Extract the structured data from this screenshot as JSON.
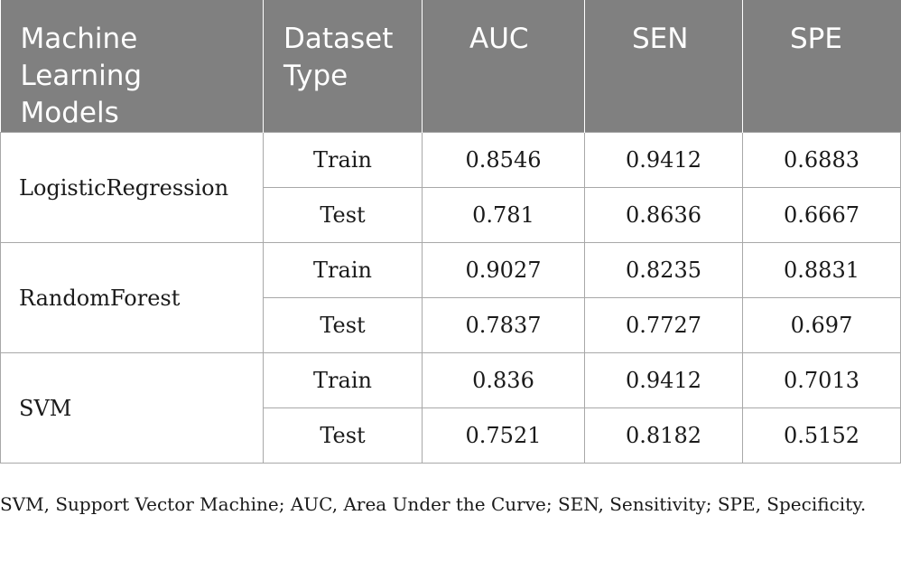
{
  "table": {
    "headers": [
      "Machine Learning Models",
      "Dataset Type",
      "AUC",
      "SEN",
      "SPE"
    ],
    "groups": [
      {
        "model": "LogisticRegression",
        "rows": [
          {
            "dataset": "Train",
            "auc": "0.8546",
            "sen": "0.9412",
            "spe": "0.6883"
          },
          {
            "dataset": "Test",
            "auc": "0.781",
            "sen": "0.8636",
            "spe": "0.6667"
          }
        ]
      },
      {
        "model": "RandomForest",
        "rows": [
          {
            "dataset": "Train",
            "auc": "0.9027",
            "sen": "0.8235",
            "spe": "0.8831"
          },
          {
            "dataset": "Test",
            "auc": "0.7837",
            "sen": "0.7727",
            "spe": "0.697"
          }
        ]
      },
      {
        "model": "SVM",
        "rows": [
          {
            "dataset": "Train",
            "auc": "0.836",
            "sen": "0.9412",
            "spe": "0.7013"
          },
          {
            "dataset": "Test",
            "auc": "0.7521",
            "sen": "0.8182",
            "spe": "0.5152"
          }
        ]
      }
    ]
  },
  "footnote": "SVM, Support Vector Machine; AUC, Area Under the Curve; SEN, Sensitivity; SPE, Specificity.",
  "colors": {
    "header_background": "#808080",
    "header_text": "#ffffff",
    "grid_line": "#a8a8a8"
  }
}
